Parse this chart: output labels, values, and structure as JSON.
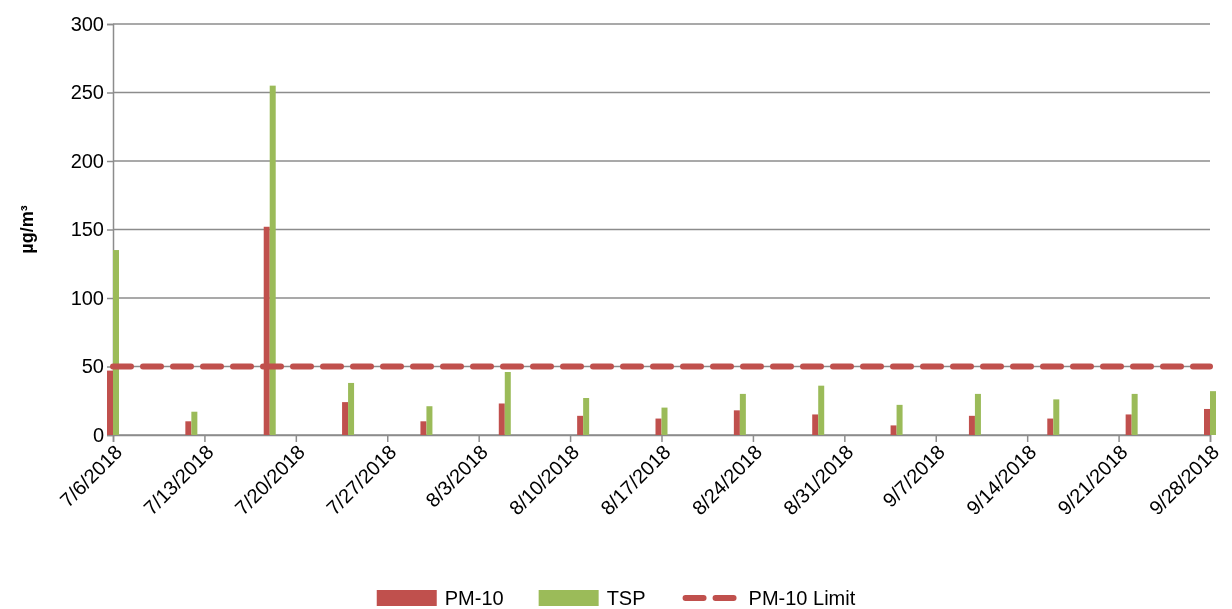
{
  "chart_data": {
    "type": "bar",
    "ylabel": "µg/m³",
    "x": [
      "2018-07-06",
      "2018-07-12",
      "2018-07-18",
      "2018-07-24",
      "2018-07-30",
      "2018-08-05",
      "2018-08-11",
      "2018-08-17",
      "2018-08-23",
      "2018-08-29",
      "2018-09-04",
      "2018-09-10",
      "2018-09-16",
      "2018-09-22",
      "2018-09-28"
    ],
    "series": [
      {
        "name": "PM-10",
        "color": "#c0504d",
        "values": [
          47,
          10,
          152,
          24,
          10,
          23,
          14,
          12,
          18,
          15,
          7,
          14,
          12,
          15,
          19
        ]
      },
      {
        "name": "TSP",
        "color": "#9bbb59",
        "values": [
          135,
          17,
          255,
          38,
          21,
          46,
          27,
          20,
          30,
          36,
          22,
          30,
          26,
          30,
          32
        ]
      }
    ],
    "ylim": [
      0,
      300
    ],
    "yticks": [
      0,
      50,
      100,
      150,
      200,
      250,
      300
    ],
    "xlim": [
      "2018-07-06",
      "2018-09-28"
    ],
    "xticks": [
      {
        "value": "2018-07-06",
        "label": "7/6/2018"
      },
      {
        "value": "2018-07-13",
        "label": "7/13/2018"
      },
      {
        "value": "2018-07-20",
        "label": "7/20/2018"
      },
      {
        "value": "2018-07-27",
        "label": "7/27/2018"
      },
      {
        "value": "2018-08-03",
        "label": "8/3/2018"
      },
      {
        "value": "2018-08-10",
        "label": "8/10/2018"
      },
      {
        "value": "2018-08-17",
        "label": "8/17/2018"
      },
      {
        "value": "2018-08-24",
        "label": "8/24/2018"
      },
      {
        "value": "2018-08-31",
        "label": "8/31/2018"
      },
      {
        "value": "2018-09-07",
        "label": "9/7/2018"
      },
      {
        "value": "2018-09-14",
        "label": "9/14/2018"
      },
      {
        "value": "2018-09-21",
        "label": "9/21/2018"
      },
      {
        "value": "2018-09-28",
        "label": "9/28/2018"
      }
    ],
    "ref_lines": [
      {
        "axis": "y",
        "value": 50,
        "label": "PM-10 Limit",
        "color": "#c0504d",
        "line_style": "dashed"
      }
    ],
    "grid": "y",
    "legend": "bottom"
  }
}
